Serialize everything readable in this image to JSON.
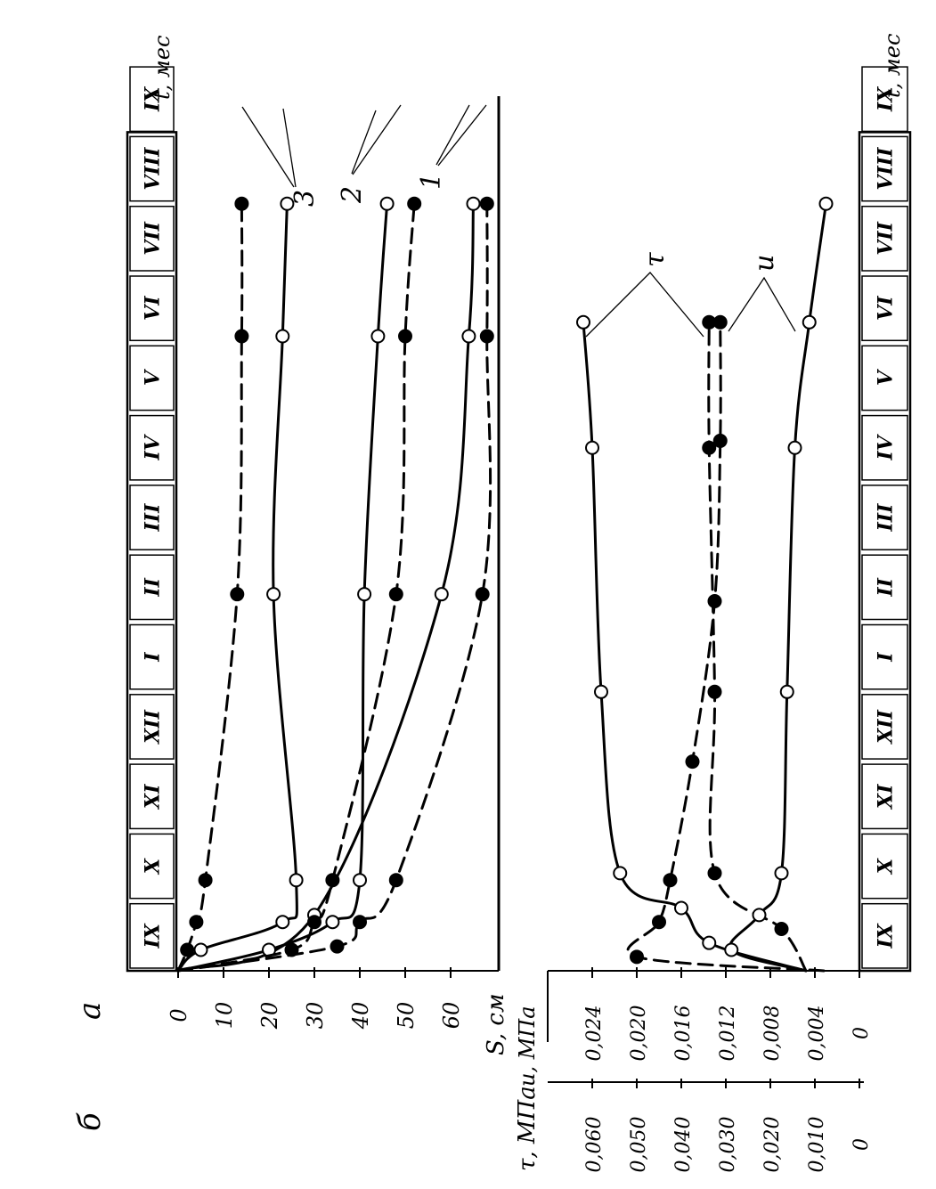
{
  "figure": {
    "panel_labels": {
      "a": "а",
      "b": "б"
    },
    "month_axis_label": "t, мес",
    "months": [
      "IX",
      "X",
      "XI",
      "XII",
      "I",
      "II",
      "III",
      "IV",
      "V",
      "VI",
      "VII",
      "VIII",
      "IX"
    ]
  },
  "chart_data": [
    {
      "panel": "а",
      "type": "line",
      "ylabel": "S, см",
      "xlabel": "t, мес",
      "y_ticks": [
        "0",
        "10",
        "20",
        "30",
        "40",
        "50",
        "60"
      ],
      "ylim": [
        0,
        70
      ],
      "xlim": [
        0,
        12
      ],
      "x_unit": "months since start (IX)",
      "curve_labels": [
        "1",
        "2",
        "3"
      ],
      "series": [
        {
          "name": "1",
          "style": "solid",
          "marker": "open",
          "x": [
            0,
            0.8,
            5.4,
            9.1,
            11.0
          ],
          "y": [
            0,
            30,
            58,
            64,
            65
          ]
        },
        {
          "name": "1",
          "style": "dashed",
          "marker": "filled",
          "x": [
            0,
            0.35,
            0.7,
            1.3,
            5.4,
            9.1,
            11.0
          ],
          "y": [
            0,
            35,
            40,
            48,
            67,
            68,
            68
          ]
        },
        {
          "name": "2",
          "style": "solid",
          "marker": "open",
          "x": [
            0,
            0.3,
            0.7,
            1.3,
            5.4,
            9.1,
            11.0
          ],
          "y": [
            0,
            20,
            34,
            40,
            41,
            44,
            46
          ]
        },
        {
          "name": "2",
          "style": "dashed",
          "marker": "filled",
          "x": [
            0,
            0.3,
            0.7,
            1.3,
            5.4,
            9.1,
            11.0
          ],
          "y": [
            0,
            25,
            30,
            34,
            48,
            50,
            52
          ]
        },
        {
          "name": "3",
          "style": "solid",
          "marker": "open",
          "x": [
            0,
            0.3,
            0.7,
            1.3,
            5.4,
            9.1,
            11.0
          ],
          "y": [
            0,
            5,
            23,
            26,
            21,
            23,
            24
          ]
        },
        {
          "name": "3",
          "style": "dashed",
          "marker": "filled",
          "x": [
            0,
            0.3,
            0.7,
            1.3,
            5.4,
            9.1,
            11.0
          ],
          "y": [
            0,
            2,
            4,
            6,
            13,
            14,
            14
          ]
        }
      ]
    },
    {
      "panel": "б",
      "type": "line",
      "ylabel_tau": "τ, МПа",
      "ylabel_u": "u, МПа",
      "xlabel": "t, мес",
      "tau_ticks": [
        "0",
        "0,010",
        "0,020",
        "0,030",
        "0,040",
        "0,050",
        "0,060"
      ],
      "u_ticks": [
        "0",
        "0,004",
        "0,008",
        "0,012",
        "0,016",
        "0,020",
        "0,024"
      ],
      "tau_lim": [
        0,
        0.07
      ],
      "u_lim": [
        0,
        0.028
      ],
      "xlim": [
        0,
        12
      ],
      "curve_labels": [
        "τ",
        "u"
      ],
      "series": [
        {
          "name": "τ",
          "style": "solid",
          "marker": "open",
          "axis": "u",
          "x": [
            0,
            0.4,
            0.9,
            1.4,
            4.0,
            7.5,
            9.3
          ],
          "y": [
            0.0048,
            0.0135,
            0.016,
            0.0215,
            0.0232,
            0.024,
            0.0248
          ]
        },
        {
          "name": "τ",
          "style": "dashed",
          "marker": "filled",
          "axis": "u",
          "x": [
            0,
            0.2,
            0.7,
            1.3,
            3.0,
            5.3,
            7.6,
            9.3
          ],
          "y": [
            0.0032,
            0.02,
            0.018,
            0.017,
            0.015,
            0.013,
            0.0125,
            0.0125
          ]
        },
        {
          "name": "u",
          "style": "dashed",
          "marker": "filled",
          "axis": "u",
          "x": [
            0,
            0.6,
            1.4,
            4.0,
            7.5,
            9.3
          ],
          "y": [
            0.0048,
            0.007,
            0.013,
            0.013,
            0.0135,
            0.0135
          ]
        },
        {
          "name": "u",
          "style": "solid",
          "marker": "open",
          "axis": "u",
          "x": [
            0,
            0.3,
            0.8,
            1.4,
            4.0,
            7.5,
            9.3,
            11.0
          ],
          "y": [
            0.0048,
            0.0115,
            0.009,
            0.007,
            0.0065,
            0.0058,
            0.0045,
            0.003
          ]
        }
      ]
    }
  ]
}
